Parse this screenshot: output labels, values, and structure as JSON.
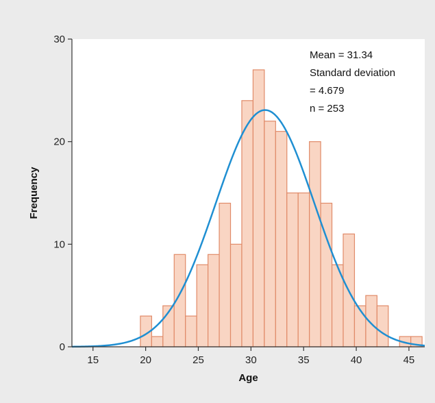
{
  "chart_data": {
    "type": "bar",
    "subtype": "histogram-with-normal-curve",
    "xlabel": "Age",
    "ylabel": "Frequency",
    "xlim": [
      13,
      46.5
    ],
    "ylim": [
      0,
      30
    ],
    "x_ticks": [
      "15",
      "20",
      "25",
      "30",
      "35",
      "40",
      "45"
    ],
    "y_ticks": [
      "0",
      "10",
      "20",
      "30"
    ],
    "bin_width": 1.07,
    "bins": [
      {
        "start": 19.5,
        "value": 3
      },
      {
        "start": 20.57,
        "value": 1
      },
      {
        "start": 21.64,
        "value": 4
      },
      {
        "start": 22.71,
        "value": 9
      },
      {
        "start": 23.78,
        "value": 3
      },
      {
        "start": 24.85,
        "value": 8
      },
      {
        "start": 25.92,
        "value": 9
      },
      {
        "start": 26.99,
        "value": 14
      },
      {
        "start": 28.06,
        "value": 10
      },
      {
        "start": 29.13,
        "value": 24
      },
      {
        "start": 30.2,
        "value": 27
      },
      {
        "start": 31.27,
        "value": 22
      },
      {
        "start": 32.34,
        "value": 21
      },
      {
        "start": 33.41,
        "value": 15
      },
      {
        "start": 34.48,
        "value": 15
      },
      {
        "start": 35.55,
        "value": 20
      },
      {
        "start": 36.62,
        "value": 14
      },
      {
        "start": 37.69,
        "value": 8
      },
      {
        "start": 38.76,
        "value": 11
      },
      {
        "start": 39.83,
        "value": 4
      },
      {
        "start": 40.9,
        "value": 5
      },
      {
        "start": 41.97,
        "value": 4
      },
      {
        "start": 43.04,
        "value": 0
      },
      {
        "start": 44.11,
        "value": 1
      },
      {
        "start": 45.18,
        "value": 1
      }
    ],
    "normal_curve": {
      "mean": 31.34,
      "sd": 4.679,
      "n": 253
    },
    "stats_text": [
      "Mean = 31.34",
      "Standard deviation",
      "= 4.679",
      "n = 253"
    ],
    "grid": false,
    "colors": {
      "background": "#ebebeb",
      "plot_area": "#ffffff",
      "bar_fill": "#f9d5c3",
      "bar_stroke": "#e08a68",
      "curve": "#1f8fd2",
      "axis": "#333333"
    }
  }
}
